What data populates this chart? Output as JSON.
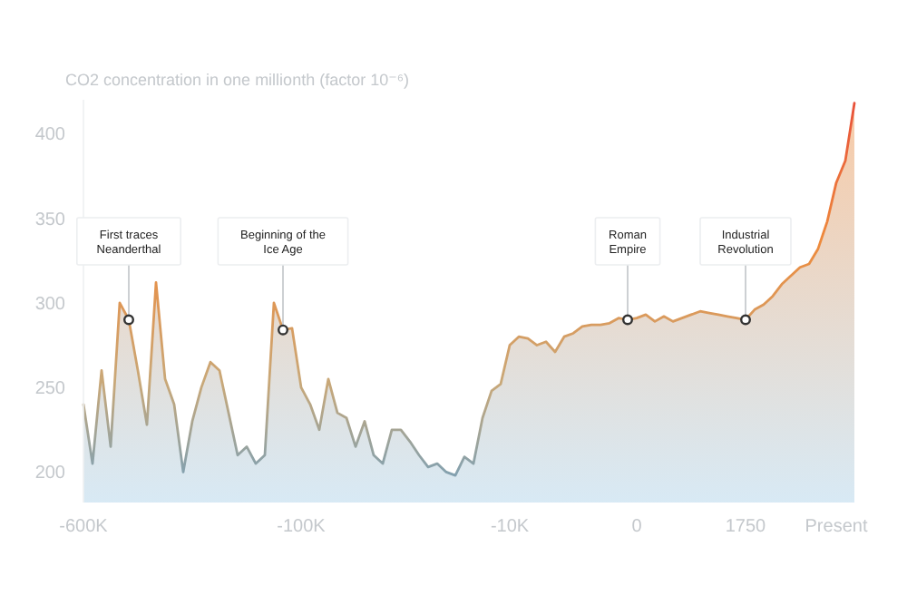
{
  "chart_data": {
    "type": "area",
    "ylabel": "CO2 concentration in one millionth (factor 10⁻⁶)",
    "categories": [
      "-600K",
      null,
      null,
      null,
      null,
      null,
      null,
      null,
      null,
      null,
      null,
      null,
      null,
      null,
      null,
      null,
      null,
      null,
      null,
      null,
      null,
      null,
      null,
      null,
      "-100K",
      null,
      null,
      null,
      null,
      null,
      null,
      null,
      null,
      null,
      null,
      null,
      null,
      null,
      null,
      null,
      null,
      null,
      null,
      null,
      null,
      null,
      null,
      "-10K",
      null,
      null,
      null,
      null,
      null,
      null,
      null,
      null,
      null,
      null,
      null,
      null,
      null,
      "0",
      null,
      null,
      null,
      null,
      null,
      null,
      null,
      null,
      null,
      null,
      null,
      "1750",
      null,
      null,
      null,
      null,
      null,
      null,
      null,
      null,
      null,
      "Present",
      null,
      null
    ],
    "series": [
      {
        "color": "#ee8a3c",
        "values": [
          240,
          205,
          260,
          215,
          300,
          290,
          260,
          228,
          312,
          255,
          240,
          200,
          230,
          250,
          265,
          260,
          235,
          210,
          215,
          205,
          210,
          300,
          284,
          285,
          250,
          240,
          225,
          255,
          235,
          232,
          215,
          230,
          210,
          205,
          225,
          225,
          218,
          210,
          203,
          205,
          200,
          198,
          209,
          205,
          232,
          248,
          252,
          275,
          280,
          279,
          275,
          277,
          271,
          280,
          282,
          286,
          287,
          287,
          288,
          291,
          290,
          291,
          293,
          289,
          292,
          289,
          291,
          293,
          295,
          294,
          293,
          292,
          291,
          290,
          296,
          299,
          304,
          311,
          316,
          321,
          323,
          332,
          348,
          371,
          384,
          418
        ]
      }
    ],
    "ylim": [
      182,
      420
    ],
    "yticks": [
      200,
      250,
      300,
      350,
      400
    ],
    "grid": false,
    "annotations": [
      {
        "text": "First traces\nNeanderthal",
        "y": 290
      },
      {
        "text": "Beginning of the\nIce Age",
        "y": 284
      },
      {
        "text": "Roman\nEmpire",
        "y": 290
      },
      {
        "text": "Industrial\nRevolution",
        "y": 290
      }
    ]
  }
}
